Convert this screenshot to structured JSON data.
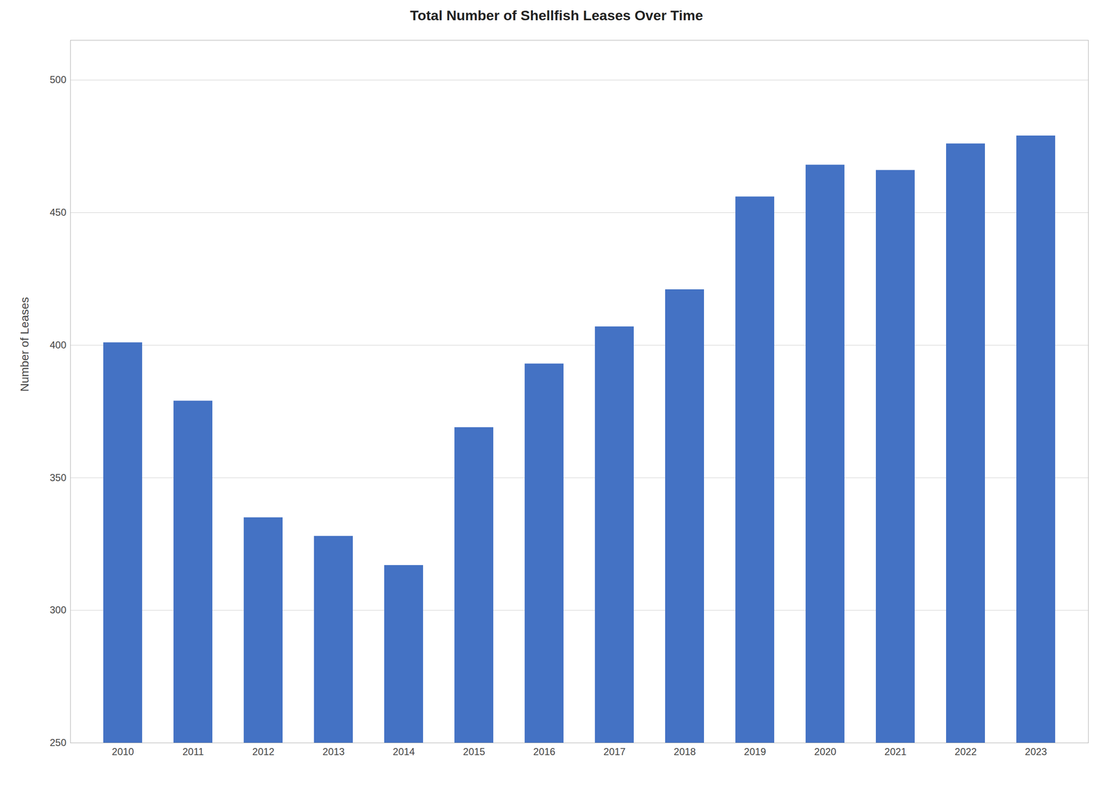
{
  "chart_data": {
    "type": "bar",
    "title": "Total Number of Shellfish Leases Over Time",
    "ylabel": "Number of Leases",
    "categories": [
      "2010",
      "2011",
      "2012",
      "2013",
      "2014",
      "2015",
      "2016",
      "2017",
      "2018",
      "2019",
      "2020",
      "2021",
      "2022",
      "2023"
    ],
    "values": [
      401,
      379,
      335,
      328,
      317,
      369,
      393,
      407,
      421,
      456,
      468,
      466,
      476,
      479
    ],
    "color": "#4472C4",
    "ylim": [
      250,
      515
    ],
    "yticks": [
      250,
      300,
      350,
      400,
      450,
      500
    ],
    "grid": true
  }
}
